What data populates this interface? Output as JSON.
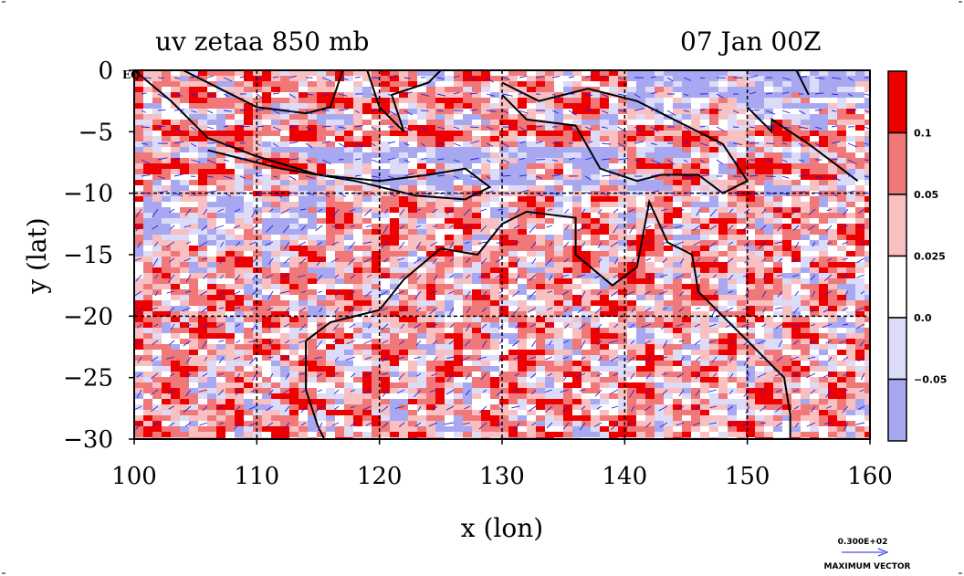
{
  "chart_data": {
    "type": "heatmap",
    "title": "uv zetaa 850 mb",
    "date": "07 Jan 00Z",
    "xlabel": "x (lon)",
    "ylabel": "y (lat)",
    "xlim": [
      100,
      160
    ],
    "ylim": [
      -30,
      0
    ],
    "xticks": [
      "100",
      "110",
      "120",
      "130",
      "140",
      "150",
      "160"
    ],
    "yticks": [
      "0",
      "−5",
      "−10",
      "−15",
      "−20",
      "−25",
      "−30"
    ],
    "eq_label": "EQ",
    "grid": true,
    "colorbar": {
      "levels": [
        "0.1",
        "0.05",
        "0.025",
        "0.0",
        "−0.05"
      ],
      "colors": [
        "#ee0000",
        "#f07878",
        "#f8c0c0",
        "#ffffff",
        "#dcdcf8",
        "#a8a8f0"
      ]
    },
    "vector_key": {
      "value": "0.300E+02",
      "label": "MAXIMUM VECTOR"
    },
    "colors": {
      "frame": "#000000",
      "vector": "#2020e0",
      "coast": "#000000"
    }
  }
}
